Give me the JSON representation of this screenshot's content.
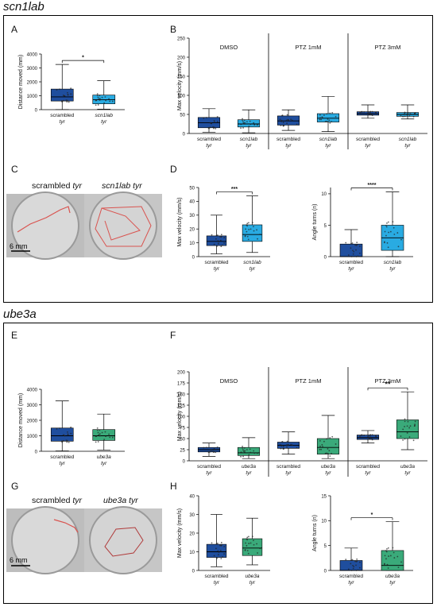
{
  "sections": [
    {
      "title": "scn1lab"
    },
    {
      "title": "ube3a"
    }
  ],
  "panel_labels": {
    "A": "A",
    "B": "B",
    "C": "C",
    "D": "D",
    "E": "E",
    "F": "F",
    "G": "G",
    "H": "H"
  },
  "photos": {
    "C": {
      "left_title_plain": "scrambled ",
      "left_title_italic": "tyr",
      "right_title": "scn1lab tyr",
      "scale": "6 mm"
    },
    "G": {
      "left_title_plain": "scrambled ",
      "left_title_italic": "tyr",
      "right_title": "ube3a tyr",
      "scale": "6 mm"
    }
  },
  "colors": {
    "scrambled": "#1f4e9e",
    "scn1lab": "#29abe2",
    "ube3a": "#3aaa7a",
    "trace": "#d9534f",
    "whisker": "#000000"
  },
  "chart_data": [
    {
      "panel": "A",
      "type": "box",
      "ylabel": "Distance moved (mm)",
      "ylim": [
        0,
        4000
      ],
      "yticks": [
        "0",
        "1000",
        "2000",
        "3000",
        "4000"
      ],
      "categories": [
        [
          "scrambled",
          "tyr"
        ],
        [
          "scn1lab",
          "tyr"
        ]
      ],
      "italic_first_line": [
        false,
        true
      ],
      "boxes": [
        {
          "min": 10,
          "q1": 620,
          "median": 920,
          "q3": 1480,
          "max": 3250,
          "color": "scrambled"
        },
        {
          "min": 40,
          "q1": 420,
          "median": 720,
          "q3": 1050,
          "max": 2080,
          "color": "scn1lab"
        }
      ],
      "significance": [
        {
          "from": 0,
          "to": 1,
          "label": "*"
        }
      ]
    },
    {
      "panel": "B",
      "type": "box",
      "ylabel": "Max velocity (mm/s)",
      "ylim": [
        0,
        250
      ],
      "yticks": [
        "0",
        "50",
        "100",
        "150",
        "200",
        "250"
      ],
      "groups": [
        "DMSO",
        "PTZ 1mM",
        "PTZ 3mM"
      ],
      "categories": [
        [
          "scrambled",
          "tyr"
        ],
        [
          "scn1lab",
          "tyr"
        ],
        [
          "scrambled",
          "tyr"
        ],
        [
          "scn1lab",
          "tyr"
        ],
        [
          "scrambled",
          "tyr"
        ],
        [
          "scn1lab",
          "tyr"
        ]
      ],
      "italic_first_line": [
        false,
        true,
        false,
        true,
        false,
        true
      ],
      "boxes": [
        {
          "min": 3,
          "q1": 15,
          "median": 28,
          "q3": 42,
          "max": 65,
          "color": "scrambled"
        },
        {
          "min": 2,
          "q1": 17,
          "median": 25,
          "q3": 36,
          "max": 62,
          "color": "scn1lab"
        },
        {
          "min": 8,
          "q1": 22,
          "median": 33,
          "q3": 46,
          "max": 62,
          "color": "scrambled"
        },
        {
          "min": 5,
          "q1": 30,
          "median": 40,
          "q3": 52,
          "max": 97,
          "color": "scn1lab"
        },
        {
          "min": 40,
          "q1": 48,
          "median": 52,
          "q3": 57,
          "max": 75,
          "color": "scrambled"
        },
        {
          "min": 38,
          "q1": 45,
          "median": 50,
          "q3": 55,
          "max": 75,
          "color": "scn1lab"
        }
      ],
      "significance": []
    },
    {
      "panel": "D1",
      "type": "box",
      "ylabel": "Max velocity (mm/s)",
      "ylim": [
        0,
        50
      ],
      "yticks": [
        "0",
        "10",
        "20",
        "30",
        "40",
        "50"
      ],
      "categories": [
        [
          "scrambled",
          "tyr"
        ],
        [
          "scn1lab",
          "tyr"
        ]
      ],
      "italic_first_line": [
        false,
        true
      ],
      "boxes": [
        {
          "min": 2,
          "q1": 8,
          "median": 11,
          "q3": 15,
          "max": 30,
          "color": "scrambled"
        },
        {
          "min": 3,
          "q1": 11,
          "median": 16,
          "q3": 23,
          "max": 44,
          "color": "scn1lab"
        }
      ],
      "significance": [
        {
          "from": 0,
          "to": 1,
          "label": "***"
        }
      ]
    },
    {
      "panel": "D2",
      "type": "box",
      "ylabel": "Angle turns (n)",
      "ylim": [
        0,
        11
      ],
      "yticks": [
        "0",
        "5",
        "10"
      ],
      "ytick_values": [
        0,
        5,
        10
      ],
      "categories": [
        [
          "scrambled",
          "tyr"
        ],
        [
          "scn1lab",
          "tyr"
        ]
      ],
      "italic_first_line": [
        false,
        true
      ],
      "boxes": [
        {
          "min": 0,
          "q1": 0,
          "median": 0,
          "q3": 2,
          "max": 4.3,
          "color": "scrambled"
        },
        {
          "min": 0,
          "q1": 1,
          "median": 3,
          "q3": 5,
          "max": 10.3,
          "color": "scn1lab"
        }
      ],
      "significance": [
        {
          "from": 0,
          "to": 1,
          "label": "****"
        }
      ]
    },
    {
      "panel": "E",
      "type": "box",
      "ylabel": "Distance moved (mm)",
      "ylim": [
        0,
        4000
      ],
      "yticks": [
        "0",
        "1000",
        "2000",
        "3000",
        "4000"
      ],
      "categories": [
        [
          "scrambled",
          "tyr"
        ],
        [
          "ube3a",
          "tyr"
        ]
      ],
      "italic_first_line": [
        false,
        true
      ],
      "boxes": [
        {
          "min": 20,
          "q1": 650,
          "median": 1000,
          "q3": 1500,
          "max": 3250,
          "color": "scrambled"
        },
        {
          "min": 80,
          "q1": 700,
          "median": 1000,
          "q3": 1400,
          "max": 2400,
          "color": "ube3a"
        }
      ],
      "significance": []
    },
    {
      "panel": "F",
      "type": "box",
      "ylabel": "Max velocity (mm/s)",
      "ylim": [
        0,
        200
      ],
      "yticks": [
        "0",
        "25",
        "50",
        "75",
        "100",
        "125",
        "150",
        "175",
        "200"
      ],
      "groups": [
        "DMSO",
        "PTZ 1mM",
        "PTZ 3mM"
      ],
      "categories": [
        [
          "scrambled",
          "tyr"
        ],
        [
          "ube3a",
          "tyr"
        ],
        [
          "scrambled",
          "tyr"
        ],
        [
          "ube3a",
          "tyr"
        ],
        [
          "scrambled",
          "tyr"
        ],
        [
          "ube3a",
          "tyr"
        ]
      ],
      "italic_first_line": [
        false,
        true,
        false,
        true,
        false,
        true
      ],
      "boxes": [
        {
          "min": 10,
          "q1": 20,
          "median": 25,
          "q3": 30,
          "max": 40,
          "color": "scrambled"
        },
        {
          "min": 5,
          "q1": 12,
          "median": 18,
          "q3": 30,
          "max": 52,
          "color": "ube3a"
        },
        {
          "min": 15,
          "q1": 28,
          "median": 35,
          "q3": 42,
          "max": 65,
          "color": "scrambled"
        },
        {
          "min": 5,
          "q1": 15,
          "median": 30,
          "q3": 50,
          "max": 102,
          "color": "ube3a"
        },
        {
          "min": 40,
          "q1": 48,
          "median": 52,
          "q3": 58,
          "max": 68,
          "color": "scrambled"
        },
        {
          "min": 25,
          "q1": 50,
          "median": 65,
          "q3": 92,
          "max": 155,
          "color": "ube3a"
        }
      ],
      "significance": [
        {
          "from": 4,
          "to": 5,
          "label": "**"
        }
      ]
    },
    {
      "panel": "H1",
      "type": "box",
      "ylabel": "Max velocity (mm/s)",
      "ylim": [
        0,
        40
      ],
      "yticks": [
        "0",
        "10",
        "20",
        "30",
        "40"
      ],
      "categories": [
        [
          "scrambled",
          "tyr"
        ],
        [
          "ube3a",
          "tyr"
        ]
      ],
      "italic_first_line": [
        false,
        true
      ],
      "boxes": [
        {
          "min": 2,
          "q1": 7,
          "median": 10,
          "q3": 14,
          "max": 30,
          "color": "scrambled"
        },
        {
          "min": 3,
          "q1": 8,
          "median": 12,
          "q3": 17,
          "max": 28,
          "color": "ube3a"
        }
      ],
      "significance": []
    },
    {
      "panel": "H2",
      "type": "box",
      "ylabel": "Angle turns (n)",
      "ylim": [
        0,
        15
      ],
      "yticks": [
        "0",
        "5",
        "10",
        "15"
      ],
      "categories": [
        [
          "scrambled",
          "tyr"
        ],
        [
          "ube3a",
          "tyr"
        ]
      ],
      "italic_first_line": [
        false,
        true
      ],
      "boxes": [
        {
          "min": 0,
          "q1": 0,
          "median": 0,
          "q3": 2,
          "max": 4.5,
          "color": "scrambled"
        },
        {
          "min": 0,
          "q1": 0,
          "median": 1,
          "q3": 4,
          "max": 9.8,
          "color": "ube3a"
        }
      ],
      "significance": [
        {
          "from": 0,
          "to": 1,
          "label": "*"
        }
      ]
    }
  ]
}
